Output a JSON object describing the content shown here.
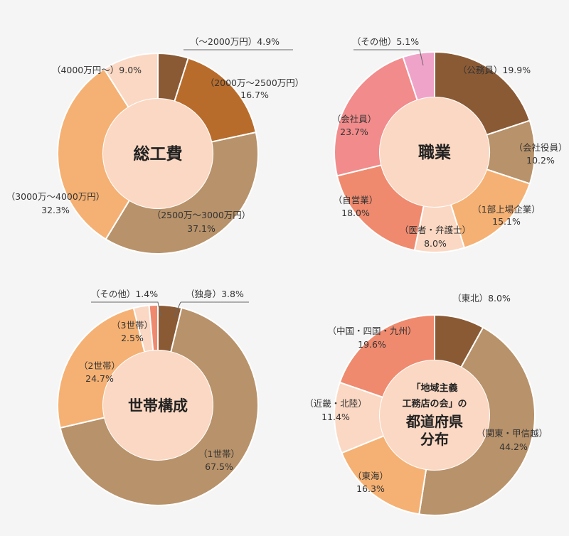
{
  "chart_data": [
    {
      "type": "pie",
      "title": "総工費",
      "slices": [
        {
          "name": "（〜2000万円）",
          "value": 4.9,
          "label": "4.9%",
          "color": "#8a5a35"
        },
        {
          "name": "（2000万〜2500万円）",
          "value": 16.7,
          "label": "16.7%",
          "color": "#b86c2c"
        },
        {
          "name": "（2500万〜3000万円）",
          "value": 37.1,
          "label": "37.1%",
          "color": "#b8926a"
        },
        {
          "name": "（3000万〜4000万円）",
          "value": 32.3,
          "label": "32.3%",
          "color": "#f5b173"
        },
        {
          "name": "（4000万円〜）",
          "value": 9.0,
          "label": "9.0%",
          "color": "#fbd8c3"
        }
      ]
    },
    {
      "type": "pie",
      "title": "職業",
      "slices": [
        {
          "name": "（公務員）",
          "value": 19.9,
          "label": "19.9%",
          "color": "#8a5a35"
        },
        {
          "name": "（会社役員）",
          "value": 10.2,
          "label": "10.2%",
          "color": "#b8926a"
        },
        {
          "name": "（1部上場企業）",
          "value": 15.1,
          "label": "15.1%",
          "color": "#f5b173"
        },
        {
          "name": "（医者・弁護士）",
          "value": 8.0,
          "label": "8.0%",
          "color": "#fbd8c3"
        },
        {
          "name": "（自営業）",
          "value": 18.0,
          "label": "18.0%",
          "color": "#ef8a6f"
        },
        {
          "name": "（会社員）",
          "value": 23.7,
          "label": "23.7%",
          "color": "#f28b8b"
        },
        {
          "name": "（その他）",
          "value": 5.1,
          "label": "5.1%",
          "color": "#f0a3c8"
        }
      ]
    },
    {
      "type": "pie",
      "title": "世帯構成",
      "slices": [
        {
          "name": "（独身）",
          "value": 3.8,
          "label": "3.8%",
          "color": "#8a5a35"
        },
        {
          "name": "（1世帯）",
          "value": 67.5,
          "label": "67.5%",
          "color": "#b8926a"
        },
        {
          "name": "（2世帯）",
          "value": 24.7,
          "label": "24.7%",
          "color": "#f5b173"
        },
        {
          "name": "（3世帯）",
          "value": 2.5,
          "label": "2.5%",
          "color": "#fbd8c3"
        },
        {
          "name": "（その他）",
          "value": 1.4,
          "label": "1.4%",
          "color": "#ef8a6f"
        }
      ]
    },
    {
      "type": "pie",
      "title_lines": [
        "「地域主義",
        "工務店の会」の",
        "都道府県",
        "分布"
      ],
      "slices": [
        {
          "name": "（東北）",
          "value": 8.0,
          "label": "8.0%",
          "color": "#8a5a35"
        },
        {
          "name": "（関東・甲信越）",
          "value": 44.2,
          "label": "44.2%",
          "color": "#b8926a"
        },
        {
          "name": "（東海）",
          "value": 16.3,
          "label": "16.3%",
          "color": "#f5b173"
        },
        {
          "name": "（近畿・北陸）",
          "value": 11.4,
          "label": "11.4%",
          "color": "#fbd8c3"
        },
        {
          "name": "（中国・四国・九州）",
          "value": 19.6,
          "label": "19.6%",
          "color": "#ef8a6f"
        }
      ]
    }
  ]
}
